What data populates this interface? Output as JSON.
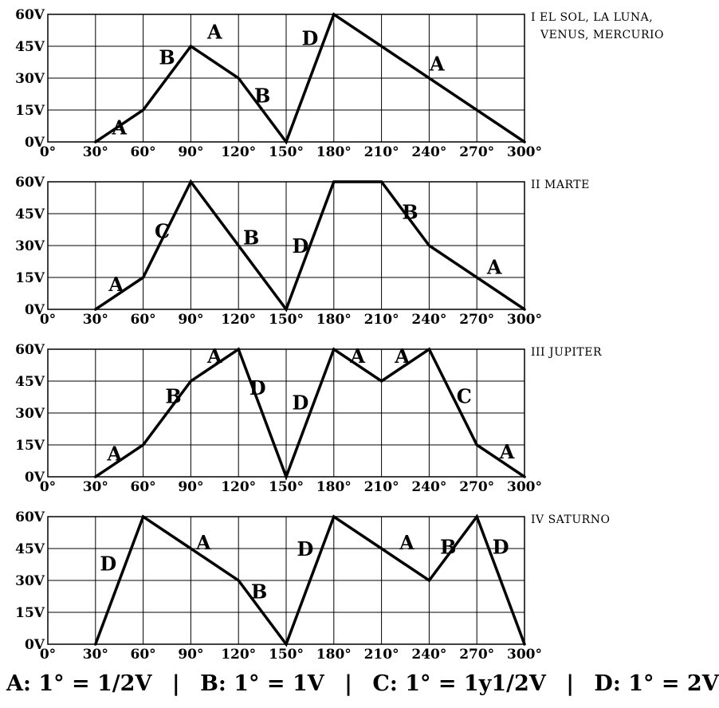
{
  "chart_data": [
    {
      "type": "line",
      "title_lines": [
        "I EL SOL, LA LUNA,",
        "VENUS, MERCURIO"
      ],
      "x": [
        0,
        30,
        60,
        90,
        120,
        150,
        180,
        210,
        240,
        270,
        300
      ],
      "x_tick_labels": [
        "0°",
        "30°",
        "60°",
        "90°",
        "120°",
        "150°",
        "180°",
        "210°",
        "240°",
        "270°",
        "300°"
      ],
      "y_tick_labels": [
        "0V",
        "15V",
        "30V",
        "45V",
        "60V"
      ],
      "xlim": [
        0,
        300
      ],
      "ylim": [
        0,
        60
      ],
      "grid": true,
      "points": [
        [
          30,
          0
        ],
        [
          60,
          15
        ],
        [
          90,
          45
        ],
        [
          120,
          30
        ],
        [
          150,
          0
        ],
        [
          180,
          60
        ],
        [
          300,
          0
        ]
      ],
      "segment_labels": [
        {
          "text": "A",
          "x": 45,
          "y": 7
        },
        {
          "text": "B",
          "x": 75,
          "y": 40
        },
        {
          "text": "A",
          "x": 105,
          "y": 52
        },
        {
          "text": "B",
          "x": 135,
          "y": 22
        },
        {
          "text": "D",
          "x": 165,
          "y": 49
        },
        {
          "text": "A",
          "x": 245,
          "y": 37
        }
      ]
    },
    {
      "type": "line",
      "title_lines": [
        "II MARTE"
      ],
      "x": [
        0,
        30,
        60,
        90,
        120,
        150,
        180,
        210,
        240,
        270,
        300
      ],
      "x_tick_labels": [
        "0°",
        "30°",
        "60°",
        "90°",
        "120°",
        "150°",
        "180°",
        "210°",
        "240°",
        "270°",
        "300°"
      ],
      "y_tick_labels": [
        "0V",
        "15V",
        "30V",
        "45V",
        "60V"
      ],
      "xlim": [
        0,
        300
      ],
      "ylim": [
        0,
        60
      ],
      "grid": true,
      "points": [
        [
          30,
          0
        ],
        [
          60,
          15
        ],
        [
          90,
          60
        ],
        [
          150,
          0
        ],
        [
          180,
          60
        ],
        [
          210,
          60
        ],
        [
          240,
          30
        ],
        [
          300,
          0
        ]
      ],
      "segment_labels": [
        {
          "text": "A",
          "x": 43,
          "y": 12
        },
        {
          "text": "C",
          "x": 72,
          "y": 37
        },
        {
          "text": "B",
          "x": 128,
          "y": 34
        },
        {
          "text": "D",
          "x": 159,
          "y": 30
        },
        {
          "text": "B",
          "x": 228,
          "y": 46
        },
        {
          "text": "A",
          "x": 281,
          "y": 20
        }
      ]
    },
    {
      "type": "line",
      "title_lines": [
        "III JUPITER"
      ],
      "x": [
        0,
        30,
        60,
        90,
        120,
        150,
        180,
        210,
        240,
        270,
        300
      ],
      "x_tick_labels": [
        "0°",
        "30°",
        "60°",
        "90°",
        "120°",
        "150°",
        "180°",
        "210°",
        "240°",
        "270°",
        "300°"
      ],
      "y_tick_labels": [
        "0V",
        "15V",
        "30V",
        "45V",
        "60V"
      ],
      "xlim": [
        0,
        300
      ],
      "ylim": [
        0,
        60
      ],
      "grid": true,
      "points": [
        [
          30,
          0
        ],
        [
          60,
          15
        ],
        [
          90,
          45
        ],
        [
          120,
          60
        ],
        [
          150,
          0
        ],
        [
          180,
          60
        ],
        [
          210,
          45
        ],
        [
          240,
          60
        ],
        [
          270,
          15
        ],
        [
          300,
          0
        ]
      ],
      "segment_labels": [
        {
          "text": "A",
          "x": 42,
          "y": 11
        },
        {
          "text": "B",
          "x": 79,
          "y": 38
        },
        {
          "text": "A",
          "x": 105,
          "y": 57
        },
        {
          "text": "D",
          "x": 132,
          "y": 42
        },
        {
          "text": "D",
          "x": 159,
          "y": 35
        },
        {
          "text": "A",
          "x": 195,
          "y": 57
        },
        {
          "text": "A",
          "x": 223,
          "y": 57
        },
        {
          "text": "C",
          "x": 262,
          "y": 38
        },
        {
          "text": "A",
          "x": 289,
          "y": 12
        }
      ]
    },
    {
      "type": "line",
      "title_lines": [
        "IV SATURNO"
      ],
      "x": [
        0,
        30,
        60,
        90,
        120,
        150,
        180,
        210,
        240,
        270,
        300
      ],
      "x_tick_labels": [
        "0°",
        "30°",
        "60°",
        "90°",
        "120°",
        "150°",
        "180°",
        "210°",
        "240°",
        "270°",
        "300°"
      ],
      "y_tick_labels": [
        "0V",
        "15V",
        "30V",
        "45V",
        "60V"
      ],
      "xlim": [
        0,
        300
      ],
      "ylim": [
        0,
        60
      ],
      "grid": true,
      "points": [
        [
          30,
          0
        ],
        [
          60,
          60
        ],
        [
          90,
          45
        ],
        [
          120,
          30
        ],
        [
          150,
          0
        ],
        [
          180,
          60
        ],
        [
          210,
          45
        ],
        [
          240,
          30
        ],
        [
          270,
          60
        ],
        [
          300,
          0
        ]
      ],
      "segment_labels": [
        {
          "text": "D",
          "x": 38,
          "y": 38
        },
        {
          "text": "A",
          "x": 98,
          "y": 48
        },
        {
          "text": "B",
          "x": 133,
          "y": 25
        },
        {
          "text": "D",
          "x": 162,
          "y": 45
        },
        {
          "text": "A",
          "x": 226,
          "y": 48
        },
        {
          "text": "B",
          "x": 252,
          "y": 46
        },
        {
          "text": "D",
          "x": 285,
          "y": 46
        }
      ]
    }
  ],
  "legend": {
    "items": [
      "A: 1° = 1/2V",
      "B: 1° = 1V",
      "C: 1° = 1y1/2V",
      "D: 1° = 2V"
    ],
    "separator": "|"
  }
}
